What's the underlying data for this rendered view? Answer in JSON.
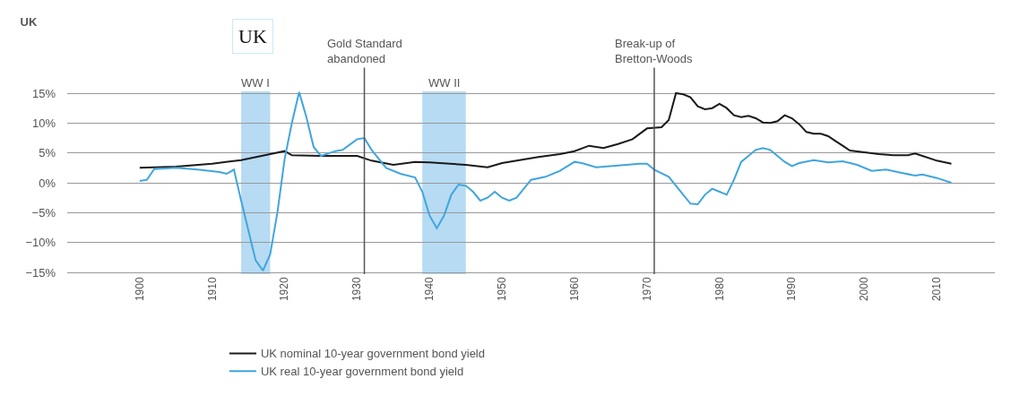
{
  "chart_data": {
    "type": "line",
    "title": "UK",
    "annotations": [
      "UK"
    ],
    "xlim": [
      1890,
      2018
    ],
    "xticks": [
      {
        "value": 1900,
        "label": "1900"
      },
      {
        "value": 1910,
        "label": "1910"
      },
      {
        "value": 1920,
        "label": "1920"
      },
      {
        "value": 1930,
        "label": "1930"
      },
      {
        "value": 1940,
        "label": "1940"
      },
      {
        "value": 1950,
        "label": "1950"
      },
      {
        "value": 1960,
        "label": "1960"
      },
      {
        "value": 1970,
        "label": "1970"
      },
      {
        "value": 1980,
        "label": "1980"
      },
      {
        "value": 1990,
        "label": "1990"
      },
      {
        "value": 2000,
        "label": "2000"
      },
      {
        "value": 2010,
        "label": "2010"
      }
    ],
    "ylim": [
      -15.3,
      15.3
    ],
    "yticks": [
      {
        "value": 15,
        "label": "15%"
      },
      {
        "value": 10,
        "label": "10%"
      },
      {
        "value": 5,
        "label": "5%"
      },
      {
        "value": 0,
        "label": "0%"
      },
      {
        "value": -5,
        "label": "−5%"
      },
      {
        "value": -10,
        "label": "−10%"
      },
      {
        "value": -15,
        "label": "−15%"
      }
    ],
    "grid": "y",
    "legend": "bottom",
    "line_style": "solid",
    "marker": "none",
    "ref_lines": [
      {
        "axis": "x",
        "value": 1931,
        "label": "Gold Standard\nabandoned",
        "color": "#555555"
      },
      {
        "axis": "x",
        "value": 1971,
        "label": "Break-up of\nBretton-Woods",
        "color": "#555555"
      }
    ],
    "bands": [
      {
        "axis": "x",
        "from": 1914,
        "to": 1918,
        "label": "WW I",
        "color": "#a9d5f1"
      },
      {
        "axis": "x",
        "from": 1939,
        "to": 1945,
        "label": "WW II",
        "color": "#a9d5f1"
      }
    ],
    "series": [
      {
        "name": "UK nominal 10-year government bond yield",
        "color": "#1a1a1a",
        "x": [
          1900,
          1905,
          1910,
          1914,
          1918,
          1920,
          1921,
          1925,
          1930,
          1932,
          1935,
          1938,
          1940,
          1945,
          1948,
          1950,
          1955,
          1958,
          1960,
          1962,
          1964,
          1966,
          1968,
          1970,
          1972,
          1973,
          1974,
          1975,
          1976,
          1977,
          1978,
          1979,
          1980,
          1981,
          1982,
          1983,
          1984,
          1985,
          1986,
          1987,
          1988,
          1989,
          1990,
          1991,
          1992,
          1993,
          1994,
          1995,
          1996,
          1997,
          1998,
          2000,
          2002,
          2004,
          2006,
          2007,
          2008,
          2010,
          2012
        ],
        "values": [
          2.5,
          2.7,
          3.2,
          3.8,
          4.8,
          5.3,
          4.6,
          4.5,
          4.5,
          3.7,
          3.0,
          3.5,
          3.4,
          3.0,
          2.6,
          3.3,
          4.3,
          4.8,
          5.3,
          6.2,
          5.8,
          6.5,
          7.3,
          9.1,
          9.3,
          10.5,
          15.0,
          14.8,
          14.3,
          12.8,
          12.3,
          12.5,
          13.2,
          12.5,
          11.3,
          11.0,
          11.2,
          10.8,
          10.1,
          10.0,
          10.3,
          11.3,
          10.8,
          9.8,
          8.5,
          8.2,
          8.2,
          7.8,
          7.0,
          6.2,
          5.4,
          5.1,
          4.8,
          4.6,
          4.6,
          4.9,
          4.5,
          3.7,
          3.2
        ]
      },
      {
        "name": "UK real 10-year government bond yield",
        "color": "#41a5dc",
        "x": [
          1900,
          1901,
          1902,
          1905,
          1908,
          1911,
          1912,
          1913,
          1914,
          1915,
          1916,
          1917,
          1918,
          1919,
          1920,
          1921,
          1922,
          1923,
          1924,
          1925,
          1927,
          1928,
          1930,
          1931,
          1932,
          1934,
          1936,
          1938,
          1939,
          1940,
          1941,
          1942,
          1943,
          1944,
          1945,
          1946,
          1947,
          1948,
          1949,
          1950,
          1951,
          1952,
          1954,
          1956,
          1958,
          1960,
          1961,
          1963,
          1966,
          1969,
          1970,
          1971,
          1973,
          1975,
          1976,
          1977,
          1978,
          1979,
          1980,
          1981,
          1982,
          1983,
          1984,
          1985,
          1986,
          1987,
          1988,
          1989,
          1990,
          1991,
          1993,
          1995,
          1997,
          1999,
          2001,
          2003,
          2005,
          2007,
          2008,
          2010,
          2012
        ],
        "values": [
          0.3,
          0.5,
          2.3,
          2.5,
          2.2,
          1.8,
          1.5,
          2.2,
          -3,
          -8,
          -13,
          -14.7,
          -12,
          -5,
          4,
          10,
          15.2,
          11,
          6,
          4.5,
          5.3,
          5.5,
          7.3,
          7.5,
          5.5,
          2.5,
          1.5,
          0.9,
          -1.5,
          -5.5,
          -7.6,
          -5.5,
          -2,
          -0.3,
          -0.5,
          -1.5,
          -3,
          -2.5,
          -1.5,
          -2.5,
          -3,
          -2.5,
          0.5,
          1.0,
          2.0,
          3.5,
          3.3,
          2.6,
          2.9,
          3.2,
          3.2,
          2.2,
          1.0,
          -2,
          -3.5,
          -3.6,
          -2,
          -1,
          -1.5,
          -2,
          0.5,
          3.5,
          4.5,
          5.5,
          5.8,
          5.5,
          4.5,
          3.5,
          2.8,
          3.3,
          3.8,
          3.4,
          3.6,
          3.0,
          2.0,
          2.2,
          1.7,
          1.2,
          1.4,
          0.8,
          0.0
        ]
      }
    ]
  }
}
